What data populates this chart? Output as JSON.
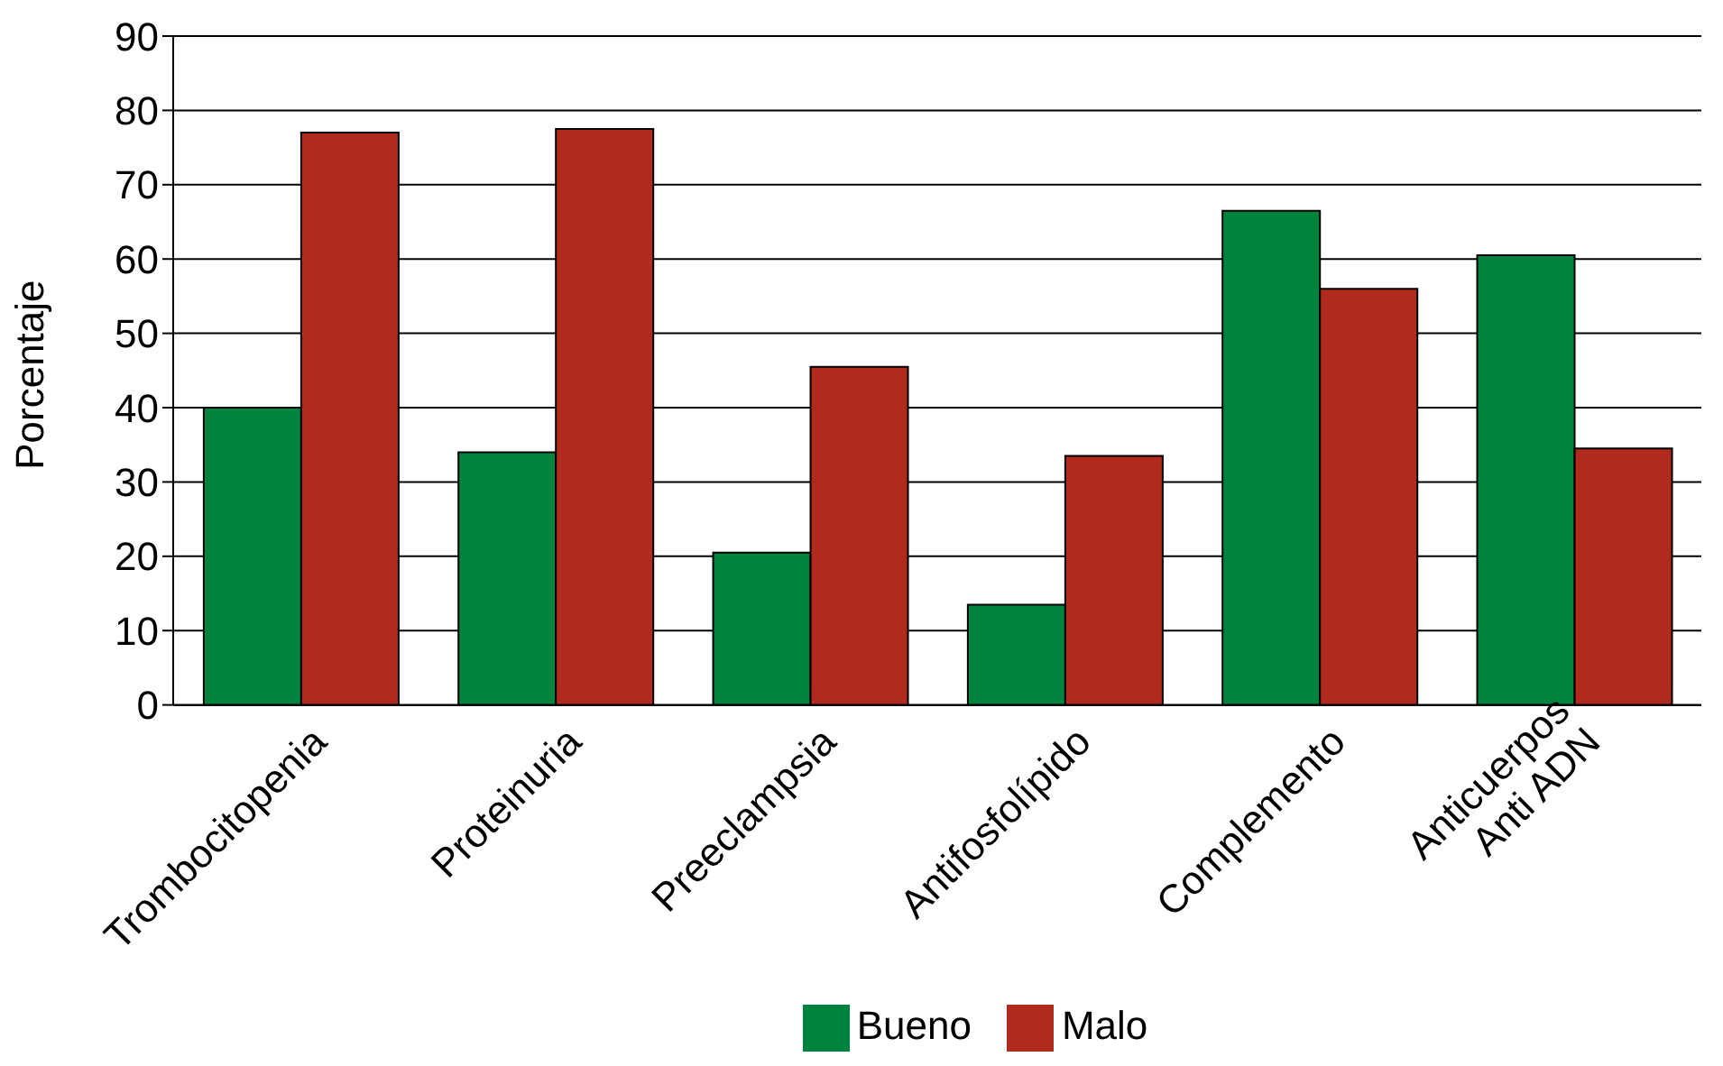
{
  "chart_data": {
    "type": "bar",
    "ylabel": "Porcentaje",
    "categories": [
      "Trombocitopenia",
      "Proteinuria",
      "Preeclampsia",
      "Antifosfolípido",
      "Complemento",
      "Anticuerpos\nAnti ADN"
    ],
    "series": [
      {
        "name": "Bueno",
        "color": "#00843d",
        "values": [
          40,
          34,
          20.5,
          13.5,
          66.5,
          60.5
        ]
      },
      {
        "name": "Malo",
        "color": "#b02a1e",
        "values": [
          77,
          77.5,
          45.5,
          33.5,
          56,
          34.5
        ]
      }
    ],
    "ylim": [
      0,
      90
    ],
    "yticks": [
      0,
      10,
      20,
      30,
      40,
      50,
      60,
      70,
      80,
      90
    ],
    "grid": "y",
    "legend": "bottom"
  }
}
